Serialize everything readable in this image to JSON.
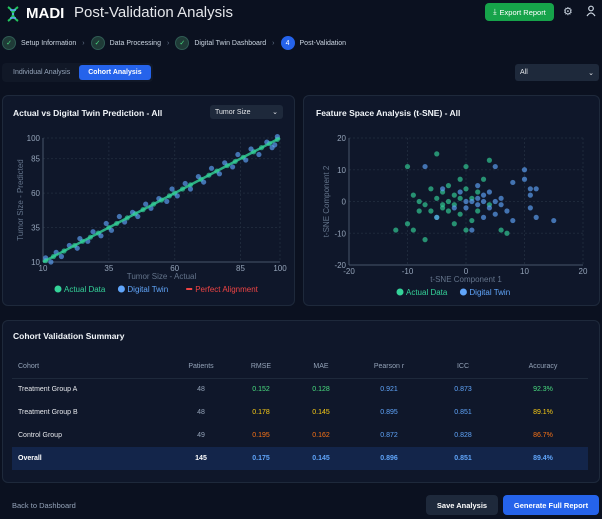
{
  "header": {
    "brand": "MADI",
    "title": "Post-Validation Analysis",
    "export_label": "Export Report",
    "icons": [
      "dna-logo",
      "download-icon",
      "gear-icon",
      "user-icon"
    ]
  },
  "steps": [
    {
      "label": "Setup Information",
      "state": "done"
    },
    {
      "label": "Data Processing",
      "state": "done"
    },
    {
      "label": "Digital Twin Dashboard",
      "state": "done"
    },
    {
      "label": "Post-Validation",
      "number": "4",
      "state": "current"
    }
  ],
  "tabs": [
    {
      "label": "Individual Analysis",
      "active": false
    },
    {
      "label": "Cohort Analysis",
      "active": true
    }
  ],
  "filter_select": "All",
  "colors": {
    "actual": "#34d399",
    "twin": "#60a5fa",
    "perfect": "#ef4444",
    "good": "#4ade80",
    "warn": "#facc15",
    "bad": "#f97316",
    "metric": "#60a5fa",
    "primary": "#2563eb",
    "export": "#16a34a"
  },
  "chart_data": [
    {
      "type": "scatter",
      "title": "Actual vs Digital Twin Prediction - All",
      "metric_select": "Tumor Size",
      "xlabel": "Tumor Size - Actual",
      "ylabel": "Tumor Size - Predicted",
      "xlim": [
        10,
        100
      ],
      "ylim": [
        10,
        100
      ],
      "xticks": [
        "10",
        "35",
        "60",
        "85",
        "100"
      ],
      "yticks": [
        "10",
        "35",
        "60",
        "85",
        "100"
      ],
      "grid": true,
      "legend": "bottom",
      "series": [
        {
          "name": "Actual Data",
          "points": [
            [
              11,
              11
            ],
            [
              14,
              14
            ],
            [
              18,
              18
            ],
            [
              22,
              22
            ],
            [
              25,
              25
            ],
            [
              28,
              28
            ],
            [
              31,
              31
            ],
            [
              35,
              35
            ],
            [
              38,
              38
            ],
            [
              42,
              42
            ],
            [
              45,
              45
            ],
            [
              48,
              48
            ],
            [
              52,
              52
            ],
            [
              55,
              55
            ],
            [
              58,
              58
            ],
            [
              60,
              60
            ],
            [
              63,
              63
            ],
            [
              66,
              66
            ],
            [
              70,
              70
            ],
            [
              73,
              73
            ],
            [
              76,
              76
            ],
            [
              80,
              80
            ],
            [
              83,
              83
            ],
            [
              86,
              86
            ],
            [
              90,
              90
            ],
            [
              93,
              93
            ],
            [
              96,
              96
            ],
            [
              99,
              99
            ]
          ]
        },
        {
          "name": "Digital Twin",
          "points": [
            [
              11,
              13
            ],
            [
              13,
              10
            ],
            [
              15,
              17
            ],
            [
              17,
              14
            ],
            [
              20,
              22
            ],
            [
              23,
              20
            ],
            [
              24,
              27
            ],
            [
              27,
              25
            ],
            [
              29,
              32
            ],
            [
              32,
              29
            ],
            [
              34,
              38
            ],
            [
              36,
              33
            ],
            [
              39,
              43
            ],
            [
              41,
              39
            ],
            [
              44,
              46
            ],
            [
              46,
              43
            ],
            [
              49,
              52
            ],
            [
              51,
              49
            ],
            [
              54,
              56
            ],
            [
              57,
              54
            ],
            [
              59,
              63
            ],
            [
              61,
              58
            ],
            [
              64,
              67
            ],
            [
              66,
              63
            ],
            [
              69,
              72
            ],
            [
              71,
              68
            ],
            [
              74,
              78
            ],
            [
              77,
              74
            ],
            [
              79,
              82
            ],
            [
              82,
              79
            ],
            [
              84,
              88
            ],
            [
              87,
              84
            ],
            [
              89,
              92
            ],
            [
              92,
              88
            ],
            [
              95,
              97
            ],
            [
              97,
              93
            ],
            [
              99,
              101
            ],
            [
              98,
              95
            ]
          ]
        },
        {
          "name": "Perfect Alignment",
          "points": [
            [
              10,
              10
            ],
            [
              100,
              100
            ]
          ]
        }
      ]
    },
    {
      "type": "scatter",
      "title": "Feature Space Analysis (t-SNE) - All",
      "xlabel": "t-SNE Component 1",
      "ylabel": "t-SNE Component 2",
      "xlim": [
        -20,
        20
      ],
      "ylim": [
        -20,
        20
      ],
      "xticks": [
        "-20",
        "-10",
        "0",
        "10",
        "20"
      ],
      "yticks": [
        "-20",
        "-10",
        "0",
        "10",
        "20"
      ],
      "grid": true,
      "legend": "bottom",
      "series": [
        {
          "name": "Actual Data",
          "points": [
            [
              -5,
              15
            ],
            [
              -10,
              11
            ],
            [
              -12,
              -9
            ],
            [
              -7,
              -12
            ],
            [
              -10,
              -7
            ],
            [
              -9,
              -9
            ],
            [
              -9,
              2
            ],
            [
              -8,
              -3
            ],
            [
              -7,
              -1
            ],
            [
              -6,
              4
            ],
            [
              -5,
              -5
            ],
            [
              -5,
              1
            ],
            [
              -4,
              -2
            ],
            [
              -4,
              3
            ],
            [
              -3,
              0
            ],
            [
              -3,
              -3
            ],
            [
              -2,
              2
            ],
            [
              -2,
              -1
            ],
            [
              -1,
              7
            ],
            [
              -1,
              -4
            ],
            [
              0,
              11
            ],
            [
              0,
              4
            ],
            [
              0,
              -9
            ],
            [
              1,
              -6
            ],
            [
              1,
              1
            ],
            [
              2,
              -3
            ],
            [
              3,
              7
            ],
            [
              4,
              13
            ],
            [
              4,
              -1
            ],
            [
              -6,
              -3
            ],
            [
              -2,
              -7
            ],
            [
              -3,
              5
            ],
            [
              6,
              -9
            ],
            [
              7,
              -10
            ],
            [
              -1,
              1
            ],
            [
              -4,
              -1
            ],
            [
              -8,
              0
            ],
            [
              2,
              3
            ]
          ]
        },
        {
          "name": "Digital Twin",
          "points": [
            [
              -7,
              11
            ],
            [
              -2,
              -2
            ],
            [
              0,
              0
            ],
            [
              1,
              0
            ],
            [
              2,
              1
            ],
            [
              2,
              -1
            ],
            [
              3,
              0
            ],
            [
              3,
              2
            ],
            [
              4,
              -2
            ],
            [
              4,
              3
            ],
            [
              5,
              11
            ],
            [
              5,
              -4
            ],
            [
              6,
              -1
            ],
            [
              6,
              1
            ],
            [
              7,
              -3
            ],
            [
              8,
              6
            ],
            [
              8,
              -6
            ],
            [
              10,
              10
            ],
            [
              10,
              7
            ],
            [
              11,
              4
            ],
            [
              11,
              2
            ],
            [
              11,
              -2
            ],
            [
              12,
              4
            ],
            [
              15,
              -6
            ],
            [
              12,
              -5
            ],
            [
              1,
              -9
            ],
            [
              3,
              -5
            ],
            [
              -1,
              3
            ],
            [
              0,
              -2
            ],
            [
              2,
              5
            ],
            [
              5,
              0
            ],
            [
              -4,
              4
            ],
            [
              -5,
              -5
            ]
          ]
        }
      ]
    }
  ],
  "summary": {
    "title": "Cohort Validation Summary",
    "columns": [
      "Cohort",
      "Patients",
      "RMSE",
      "MAE",
      "Pearson r",
      "ICC",
      "Accuracy"
    ],
    "rows": [
      {
        "cells": [
          "Treatment Group A",
          "48",
          "0.152",
          "0.128",
          "0.921",
          "0.873",
          "92.3%"
        ],
        "status": "good"
      },
      {
        "cells": [
          "Treatment Group B",
          "48",
          "0.178",
          "0.145",
          "0.895",
          "0.851",
          "89.1%"
        ],
        "status": "warn"
      },
      {
        "cells": [
          "Control Group",
          "49",
          "0.195",
          "0.162",
          "0.872",
          "0.828",
          "86.7%"
        ],
        "status": "bad"
      },
      {
        "cells": [
          "Overall",
          "145",
          "0.175",
          "0.145",
          "0.896",
          "0.851",
          "89.4%"
        ],
        "status": "overall"
      }
    ]
  },
  "footer": {
    "back_label": "Back to Dashboard",
    "save_label": "Save Analysis",
    "generate_label": "Generate Full Report"
  }
}
